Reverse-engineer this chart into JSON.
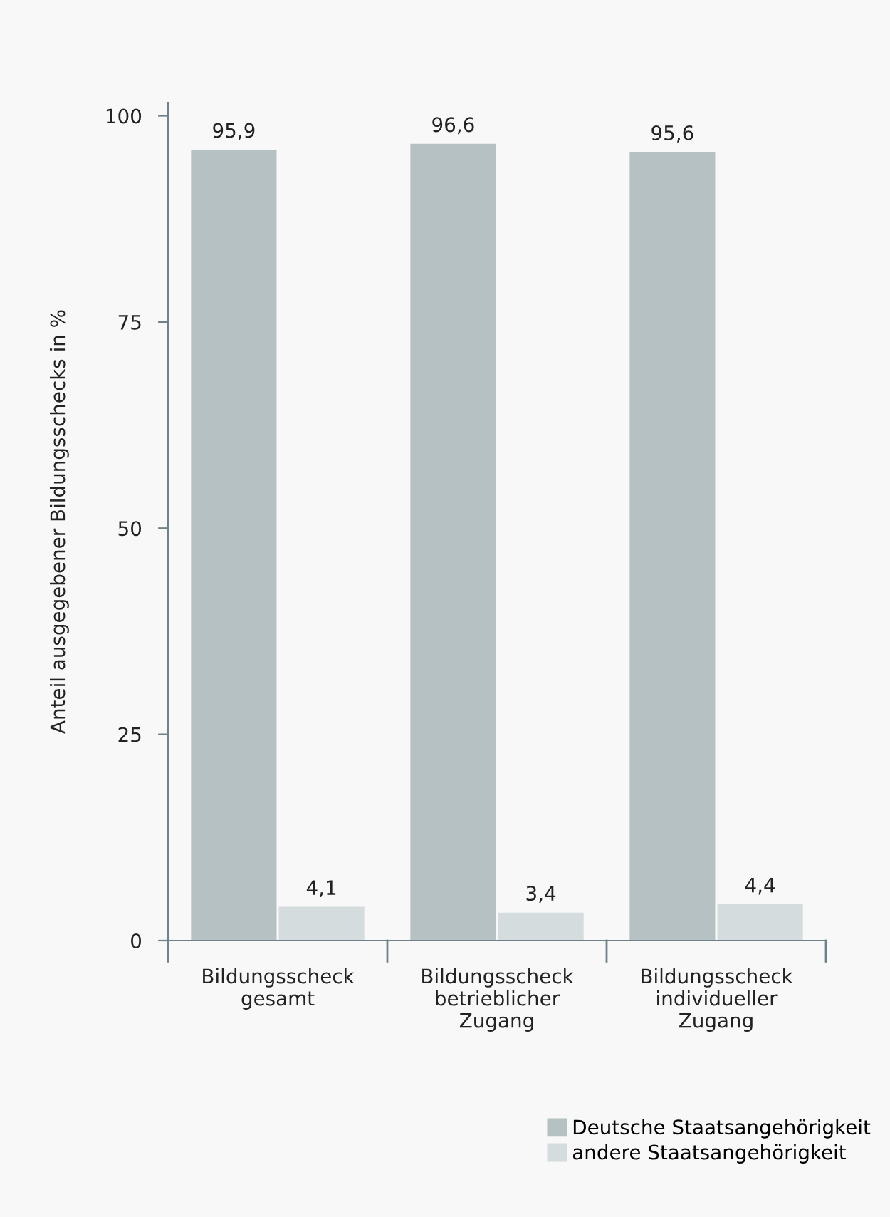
{
  "chart_data": {
    "type": "bar",
    "ylabel": "Anteil ausgegebener Bildungsschecks in %",
    "categories": [
      "Bildungsscheck\ngesamt",
      "Bildungsscheck\nbetrieblicher\nZugang",
      "Bildungsscheck\nindividueller\nZugang"
    ],
    "series": [
      {
        "name": "Deutsche Staatsangehörigkeit",
        "color": "#b6c1c3",
        "values": [
          95.9,
          96.6,
          95.6
        ],
        "value_labels": [
          "95,9",
          "96,6",
          "95,6"
        ]
      },
      {
        "name": "andere Staatsangehörigkeit",
        "color": "#d5dcde",
        "values": [
          4.1,
          3.4,
          4.4
        ],
        "value_labels": [
          "4,1",
          "3,4",
          "4,4"
        ]
      }
    ],
    "ylim": [
      0,
      101.6
    ],
    "yticks": [
      0,
      25,
      50,
      75,
      100
    ],
    "grid": false,
    "legend": "bottom right"
  }
}
